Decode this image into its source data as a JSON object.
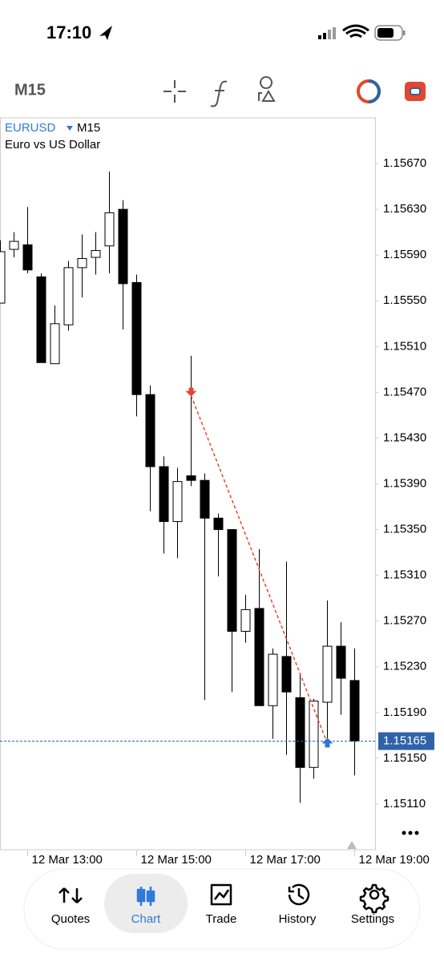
{
  "status": {
    "time": "17:10"
  },
  "toolbar": {
    "timeframe": "M15"
  },
  "chart_data": {
    "type": "candlestick",
    "symbol": "EURUSD",
    "timeframe": "M15",
    "description": "Euro vs US Dollar",
    "categories": [
      null,
      null,
      "12 Mar 13:00",
      null,
      null,
      null,
      null,
      null,
      null,
      null,
      "12 Mar 15:00",
      null,
      null,
      null,
      null,
      null,
      null,
      null,
      "12 Mar 17:00",
      null,
      null,
      null,
      null,
      null,
      null,
      null,
      "12 Mar 19:00"
    ],
    "open": [
      1.15548,
      1.15595,
      1.15599,
      1.15571,
      1.15495,
      1.15529,
      1.15579,
      1.15588,
      1.15598,
      1.1563,
      1.15566,
      1.15468,
      1.15405,
      1.15357,
      1.15397,
      1.15393,
      1.1536,
      1.1535,
      1.15261,
      1.15281,
      1.15196,
      1.15239,
      1.15203,
      1.15142,
      1.15199,
      1.15248,
      1.15218
    ],
    "high": [
      1.15603,
      1.1561,
      1.15632,
      1.15574,
      1.15546,
      1.15585,
      1.15608,
      1.1561,
      1.15663,
      1.15638,
      1.15573,
      1.15476,
      1.15414,
      1.15404,
      1.15502,
      1.15399,
      1.15364,
      1.1535,
      1.15293,
      1.15333,
      1.15246,
      1.15322,
      1.15223,
      1.15202,
      1.15288,
      1.15269,
      1.15246
    ],
    "low": [
      1.15548,
      1.15588,
      1.15574,
      1.15496,
      1.15495,
      1.15524,
      1.15553,
      1.15573,
      1.15574,
      1.15525,
      1.15449,
      1.15366,
      1.15329,
      1.15325,
      1.15388,
      1.15201,
      1.15309,
      1.15208,
      1.15251,
      1.15196,
      1.15167,
      1.15153,
      1.15111,
      1.15132,
      1.15167,
      1.15188,
      1.15135
    ],
    "close": [
      1.15593,
      1.15602,
      1.15577,
      1.15496,
      1.1553,
      1.15579,
      1.15587,
      1.15594,
      1.15627,
      1.15565,
      1.15468,
      1.15405,
      1.15357,
      1.15392,
      1.15393,
      1.1536,
      1.1535,
      1.15261,
      1.1528,
      1.15196,
      1.15241,
      1.15208,
      1.15142,
      1.152,
      1.15248,
      1.1522,
      1.15165
    ],
    "ylim": [
      1.1507,
      1.1571
    ],
    "yticks": [
      {
        "value": 1.1567,
        "label": "1.15670"
      },
      {
        "value": 1.1563,
        "label": "1.15630"
      },
      {
        "value": 1.1559,
        "label": "1.15590"
      },
      {
        "value": 1.1555,
        "label": "1.15550"
      },
      {
        "value": 1.1551,
        "label": "1.15510"
      },
      {
        "value": 1.1547,
        "label": "1.15470"
      },
      {
        "value": 1.1543,
        "label": "1.15430"
      },
      {
        "value": 1.1539,
        "label": "1.15390"
      },
      {
        "value": 1.1535,
        "label": "1.15350"
      },
      {
        "value": 1.1531,
        "label": "1.15310"
      },
      {
        "value": 1.1527,
        "label": "1.15270"
      },
      {
        "value": 1.1523,
        "label": "1.15230"
      },
      {
        "value": 1.1519,
        "label": "1.15190"
      },
      {
        "value": 1.1515,
        "label": "1.15150"
      },
      {
        "value": 1.1511,
        "label": "1.15110"
      }
    ],
    "current_price": {
      "value": 1.15165,
      "label": "1.15165"
    },
    "trade": {
      "open_index": 14,
      "open_price": 1.15467,
      "close_index": 24,
      "close_price": 1.15163
    },
    "bull_color": "#ffffff",
    "bear_color": "#000000",
    "price_line_color": "#2f62a8"
  },
  "tabs": [
    {
      "label": "Quotes"
    },
    {
      "label": "Chart"
    },
    {
      "label": "Trade"
    },
    {
      "label": "History"
    },
    {
      "label": "Settings"
    }
  ],
  "active_tab": 1
}
